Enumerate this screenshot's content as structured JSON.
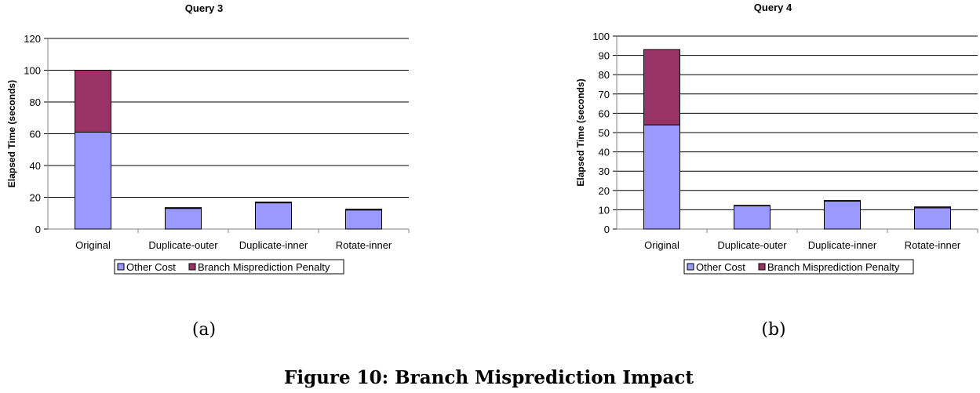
{
  "colors": {
    "other_cost": "#9999ff",
    "branch_penalty": "#993366",
    "gridline": "#000000",
    "axis": "#808080"
  },
  "figure_caption": "Figure 10: Branch Misprediction Impact",
  "legend": [
    "Other Cost",
    "Branch Misprediction Penalty"
  ],
  "chart_data": [
    {
      "type": "bar",
      "stacked": true,
      "title": "Query 3",
      "subcaption": "(a)",
      "ylabel": "Elapsed Time (seconds)",
      "xlabel": "",
      "ylim": [
        0,
        120
      ],
      "yticks": [
        0,
        20,
        40,
        60,
        80,
        100,
        120
      ],
      "grid": true,
      "legend_position": "bottom",
      "categories": [
        "Original",
        "Duplicate-outer",
        "Duplicate-inner",
        "Rotate-inner"
      ],
      "series": [
        {
          "name": "Other Cost",
          "values": [
            61,
            13,
            16.5,
            12
          ]
        },
        {
          "name": "Branch Misprediction Penalty",
          "values": [
            39,
            0.5,
            0.5,
            0.5
          ]
        }
      ]
    },
    {
      "type": "bar",
      "stacked": true,
      "title": "Query 4",
      "subcaption": "(b)",
      "ylabel": "Elapsed Time (seconds)",
      "xlabel": "",
      "ylim": [
        0,
        100
      ],
      "yticks": [
        0,
        10,
        20,
        30,
        40,
        50,
        60,
        70,
        80,
        90,
        100
      ],
      "grid": true,
      "legend_position": "bottom",
      "categories": [
        "Original",
        "Duplicate-outer",
        "Duplicate-inner",
        "Rotate-inner"
      ],
      "series": [
        {
          "name": "Other Cost",
          "values": [
            54,
            12,
            14.5,
            11
          ]
        },
        {
          "name": "Branch Misprediction Penalty",
          "values": [
            39,
            0.3,
            0.3,
            0.5
          ]
        }
      ]
    }
  ]
}
